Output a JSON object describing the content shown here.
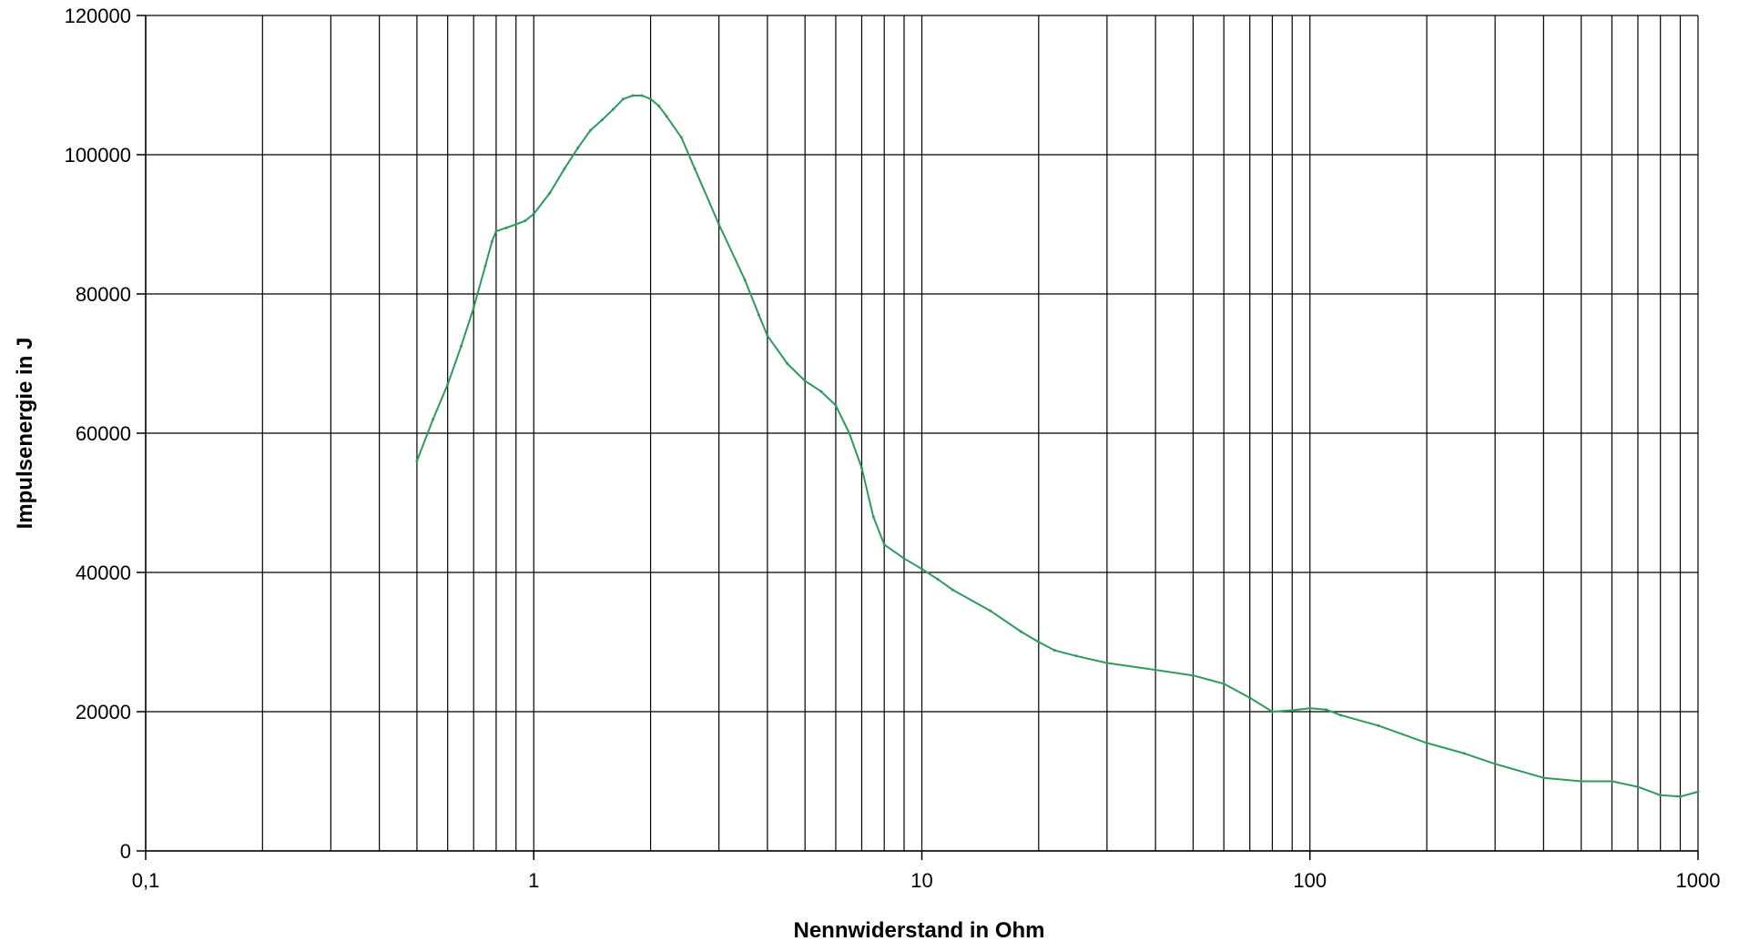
{
  "chart_data": {
    "type": "line",
    "title": "",
    "xlabel": "Nennwiderstand in Ohm",
    "ylabel": "Impulsenergie in J",
    "x_scale": "log",
    "xlim": [
      0.1,
      1000
    ],
    "ylim": [
      0,
      120000
    ],
    "x_tick_values": [
      0.1,
      1,
      10,
      100,
      1000
    ],
    "x_tick_labels": [
      "0,1",
      "1",
      "10",
      "100",
      "1000"
    ],
    "y_tick_values": [
      0,
      20000,
      40000,
      60000,
      80000,
      100000,
      120000
    ],
    "y_tick_labels": [
      "0",
      "20000",
      "40000",
      "60000",
      "80000",
      "100000",
      "120000"
    ],
    "grid": true,
    "line_color": "#2e9a5e",
    "series": [
      {
        "x": [
          0.5,
          0.55,
          0.6,
          0.65,
          0.7,
          0.75,
          0.78,
          0.8,
          0.85,
          0.9,
          0.95,
          1.0,
          1.1,
          1.2,
          1.3,
          1.4,
          1.5,
          1.6,
          1.7,
          1.8,
          1.9,
          2.0,
          2.1,
          2.2,
          2.4,
          2.6,
          3.0,
          3.5,
          3.8,
          4.0,
          4.5,
          5.0,
          5.5,
          6.0,
          6.5,
          7.0,
          7.5,
          8.0,
          9.0,
          10,
          11,
          12,
          15,
          18,
          20,
          22,
          25,
          30,
          40,
          50,
          60,
          70,
          80,
          90,
          100,
          110,
          120,
          150,
          200,
          250,
          300,
          400,
          500,
          600,
          700,
          800,
          900,
          1000
        ],
        "y": [
          56000,
          62000,
          67000,
          72500,
          78000,
          84000,
          87500,
          89000,
          89500,
          90000,
          90500,
          91500,
          94500,
          98000,
          101000,
          103500,
          105000,
          106500,
          108000,
          108500,
          108500,
          108000,
          107000,
          105500,
          102500,
          98000,
          90000,
          82000,
          77000,
          74000,
          70000,
          67500,
          66000,
          64000,
          60000,
          55000,
          48000,
          44000,
          42000,
          40500,
          39000,
          37500,
          34500,
          31500,
          30000,
          28800,
          28000,
          27000,
          26000,
          25200,
          24000,
          22000,
          20000,
          20200,
          20500,
          20300,
          19500,
          18000,
          15500,
          14000,
          12500,
          10500,
          10000,
          10000,
          9200,
          8000,
          7800,
          8500
        ]
      }
    ]
  }
}
